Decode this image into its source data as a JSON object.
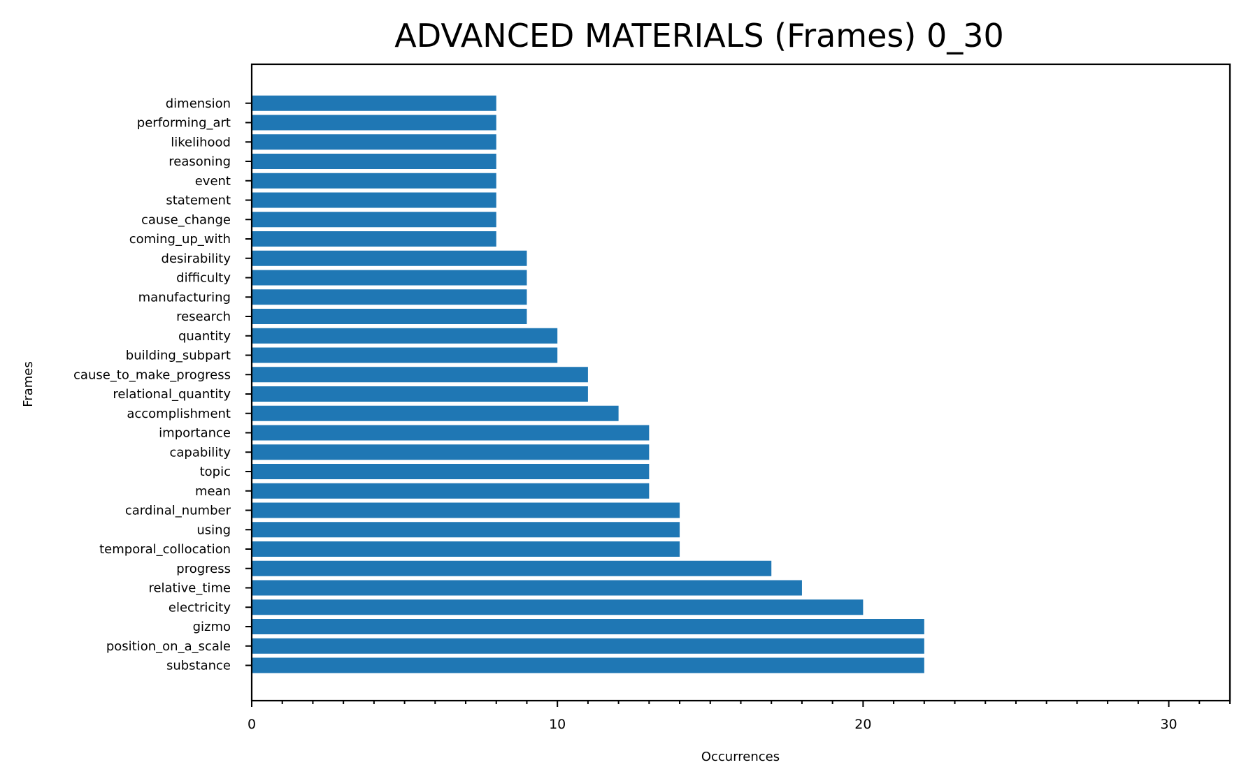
{
  "chart_data": {
    "type": "bar",
    "orientation": "horizontal",
    "title": "ADVANCED MATERIALS (Frames) 0_30",
    "xlabel": "Occurrences",
    "ylabel": "Frames",
    "xlim": [
      0,
      32
    ],
    "xticks": [
      0,
      10,
      20,
      30
    ],
    "grid": false,
    "bar_color": "#1f77b4",
    "categories": [
      "substance",
      "position_on_a_scale",
      "gizmo",
      "electricity",
      "relative_time",
      "progress",
      "temporal_collocation",
      "using",
      "cardinal_number",
      "mean",
      "topic",
      "capability",
      "importance",
      "accomplishment",
      "relational_quantity",
      "cause_to_make_progress",
      "building_subpart",
      "quantity",
      "research",
      "manufacturing",
      "difficulty",
      "desirability",
      "coming_up_with",
      "cause_change",
      "statement",
      "event",
      "reasoning",
      "likelihood",
      "performing_art",
      "dimension"
    ],
    "values": [
      22,
      22,
      22,
      20,
      18,
      17,
      14,
      14,
      14,
      13,
      13,
      13,
      13,
      12,
      11,
      11,
      10,
      10,
      9,
      9,
      9,
      9,
      8,
      8,
      8,
      8,
      8,
      8,
      8,
      8
    ]
  }
}
